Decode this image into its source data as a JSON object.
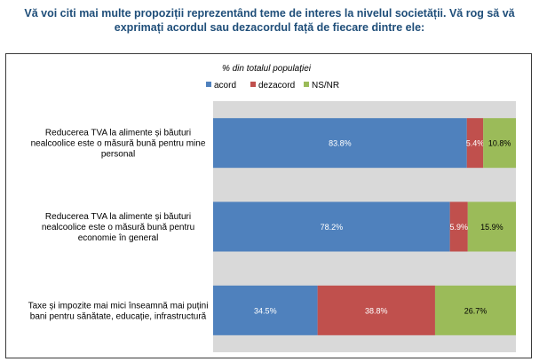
{
  "header": {
    "title_line1": "Vă voi citi mai multe propoziții reprezentând teme de interes la nivelul societății. Vă rog să vă",
    "title_line2": "exprimați acordul sau dezacordul față de fiecare dintre ele:"
  },
  "chart_data": {
    "type": "bar",
    "orientation": "horizontal",
    "stacked": true,
    "subtitle": "% din totalul populației",
    "legend_position": "top",
    "categories": [
      [
        "Reducerea TVA la alimente și băuturi",
        "nealcoolice este o măsură bună pentru mine",
        "personal"
      ],
      [
        "Reducerea TVA la alimente și băuturi",
        "nealcoolice este o măsură bună pentru",
        "economie în general"
      ],
      [
        "Taxe și impozite mai mici înseamnă mai puțini",
        "bani pentru sănătate, educație, infrastructură"
      ]
    ],
    "series": [
      {
        "name": "acord",
        "color": "#4f81bd",
        "values": [
          83.8,
          78.2,
          34.5
        ],
        "labels": [
          "83.8%",
          "78.2%",
          "34.5%"
        ],
        "label_color": "#ffffff"
      },
      {
        "name": "dezacord",
        "color": "#c0504d",
        "values": [
          5.4,
          5.9,
          38.8
        ],
        "labels": [
          "5.4%",
          "5.9%",
          "38.8%"
        ],
        "label_color": "#ffffff"
      },
      {
        "name": "NS/NR",
        "color": "#9bbb59",
        "values": [
          10.8,
          15.9,
          26.7
        ],
        "labels": [
          "10.8%",
          "15.9%",
          "26.7%"
        ],
        "label_color": "#000000"
      }
    ],
    "xlim": [
      0,
      100
    ]
  }
}
